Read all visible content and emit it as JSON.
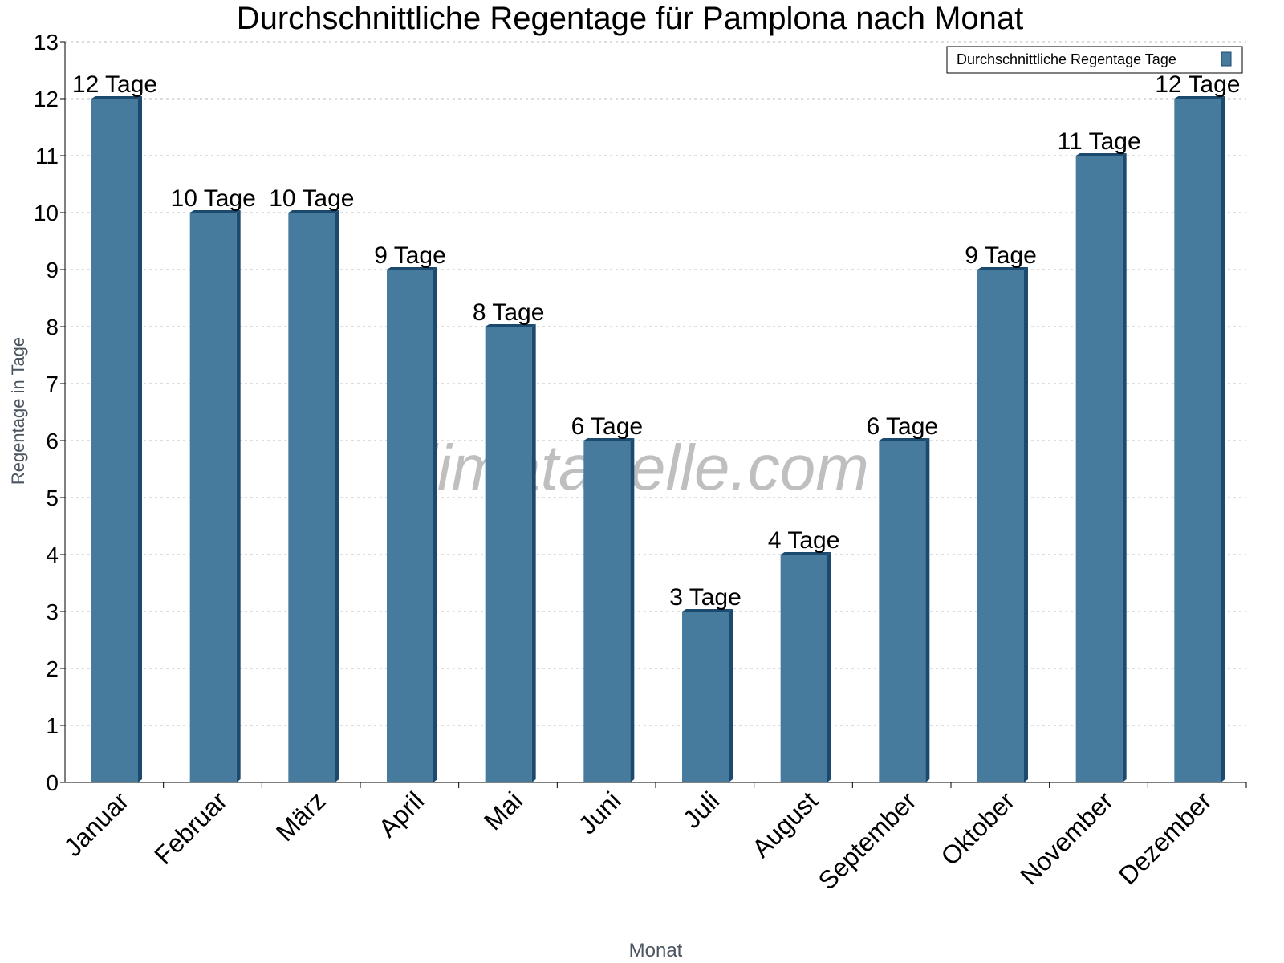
{
  "chart_data": {
    "type": "bar",
    "title": "Durchschnittliche Regentage für Pamplona nach Monat",
    "xlabel": "Monat",
    "ylabel": "Regentage in Tage",
    "categories": [
      "Januar",
      "Februar",
      "März",
      "April",
      "Mai",
      "Juni",
      "Juli",
      "August",
      "September",
      "Oktober",
      "November",
      "Dezember"
    ],
    "series": [
      {
        "name": "Durchschnittliche Regentage Tage",
        "values": [
          12,
          10,
          10,
          9,
          8,
          6,
          3,
          4,
          6,
          9,
          11,
          12
        ]
      }
    ],
    "data_labels": [
      "12 Tage",
      "10 Tage",
      "10 Tage",
      "9 Tage",
      "8 Tage",
      "6 Tage",
      "3 Tage",
      "4 Tage",
      "6 Tage",
      "9 Tage",
      "11 Tage",
      "12 Tage"
    ],
    "ylim": [
      0,
      13
    ],
    "yticks": [
      0,
      1,
      2,
      3,
      4,
      5,
      6,
      7,
      8,
      9,
      10,
      11,
      12,
      13
    ],
    "grid": true,
    "legend_position": "top-right",
    "colors": {
      "bar_front": "#467b9e",
      "bar_side": "#1b4a6e"
    },
    "watermark": "klimatabelle.com"
  }
}
